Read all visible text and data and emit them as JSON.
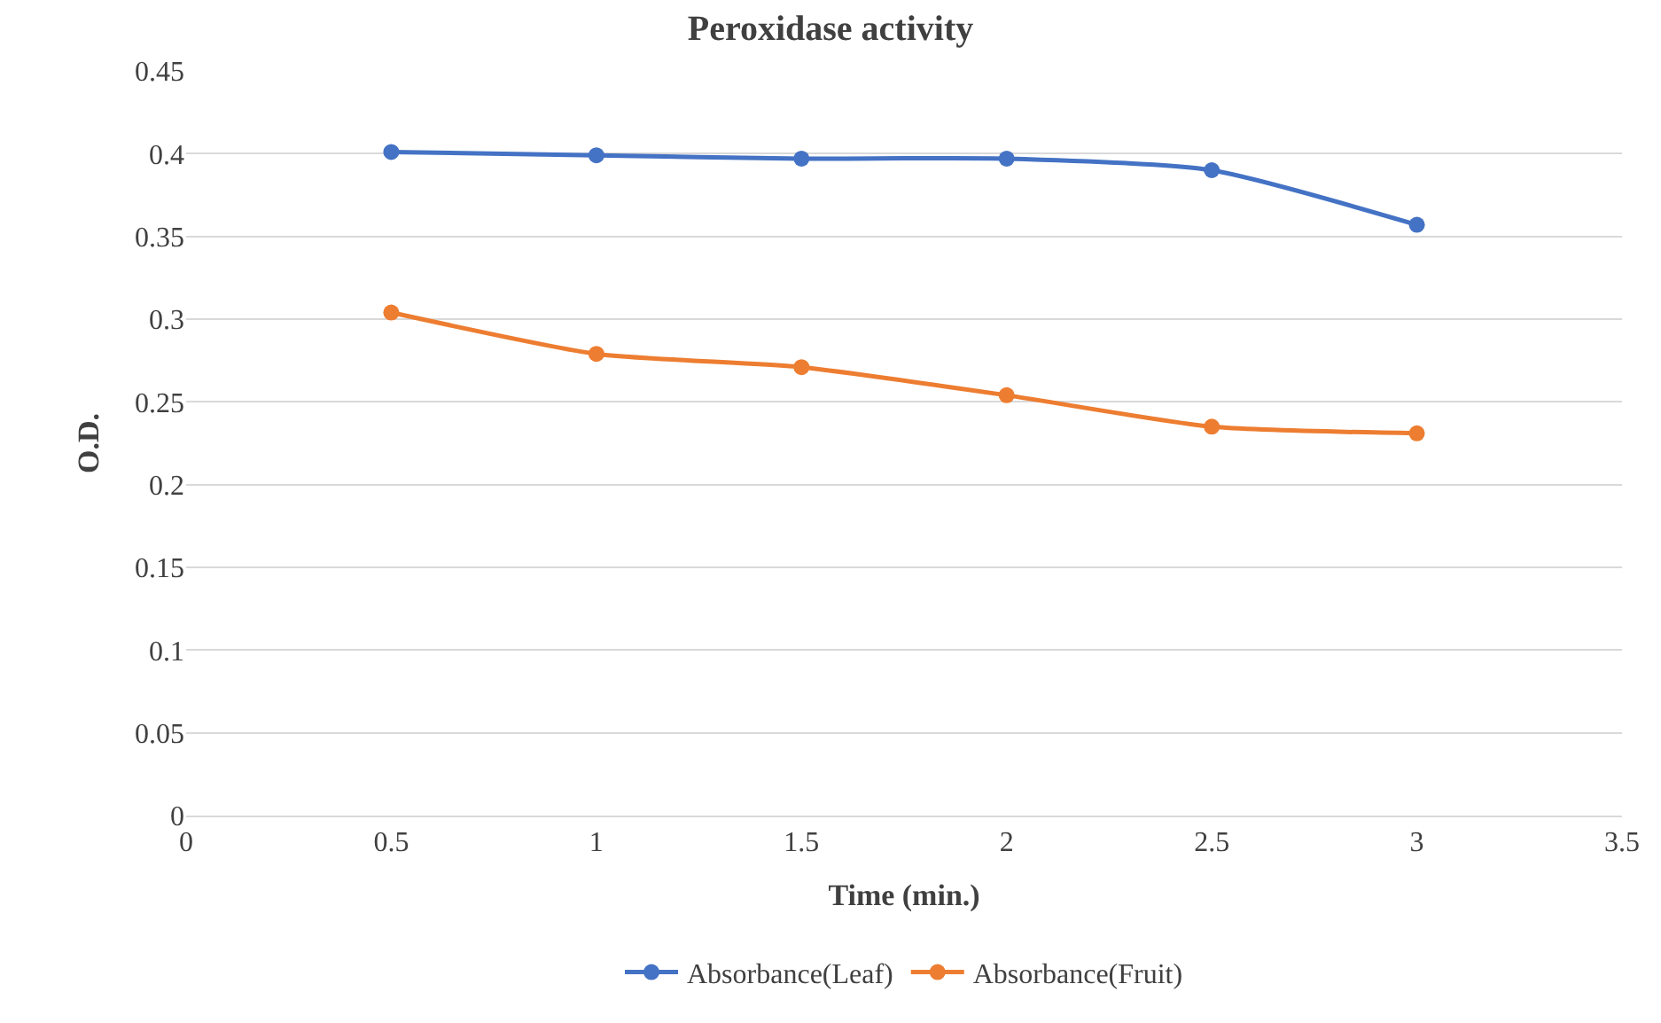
{
  "chart_data": {
    "type": "line",
    "title": "Peroxidase activity",
    "xlabel": "Time (min.)",
    "ylabel": "O.D.",
    "x": [
      0.5,
      1,
      1.5,
      2,
      2.5,
      3
    ],
    "series": [
      {
        "name": "Absorbance(Leaf)",
        "color": "#4472c4",
        "values": [
          0.401,
          0.399,
          0.397,
          0.397,
          0.39,
          0.357
        ]
      },
      {
        "name": "Absorbance(Fruit)",
        "color": "#ed7d31",
        "values": [
          0.304,
          0.279,
          0.271,
          0.254,
          0.235,
          0.231
        ]
      }
    ],
    "xlim": [
      0,
      3.5
    ],
    "xticks": [
      0,
      0.5,
      1,
      1.5,
      2,
      2.5,
      3,
      3.5
    ],
    "ylim": [
      0,
      0.45
    ],
    "yticks": [
      0,
      0.05,
      0.1,
      0.15,
      0.2,
      0.25,
      0.3,
      0.35,
      0.4,
      0.45
    ],
    "grid": "y",
    "legend": "bottom",
    "marker": "circle",
    "line_style": "solid"
  }
}
